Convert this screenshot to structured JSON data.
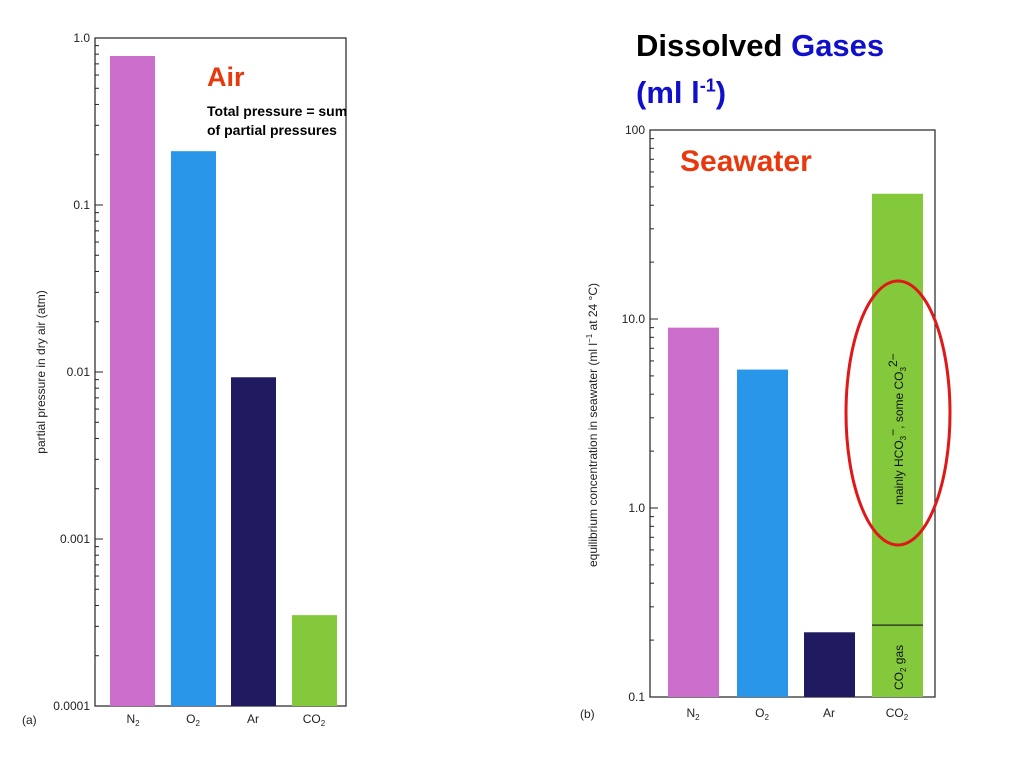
{
  "slide": {
    "title_part1": "Dissolved",
    "title_part2": "Gases",
    "title_unit_open": "(ml l",
    "title_unit_sup": "-1",
    "title_unit_close": ")",
    "air_label": "Air",
    "air_sub_line1": "Total pressure = sum",
    "air_sub_line2": "of partial pressures",
    "seawater_label": "Seawater",
    "colors": {
      "title_accent": "#1010cc",
      "label_accent": "#e8380d",
      "annotation_ellipse": "#e01818"
    }
  },
  "chart_data": [
    {
      "type": "bar",
      "panel": "(a)",
      "scale": "log",
      "categories": [
        "N2",
        "O2",
        "Ar",
        "CO2"
      ],
      "values": [
        0.78,
        0.21,
        0.0093,
        0.00035
      ],
      "colors": [
        "#cc6fcc",
        "#2a96ea",
        "#201a60",
        "#84c93c"
      ],
      "ylabel": "partial pressure in dry air (atm)",
      "ylim": [
        0.0001,
        1.0
      ],
      "yticks": [
        {
          "value": 1.0,
          "label": "1.0"
        },
        {
          "value": 0.1,
          "label": "0.1"
        },
        {
          "value": 0.01,
          "label": "0.01"
        },
        {
          "value": 0.001,
          "label": "0.001"
        },
        {
          "value": 0.0001,
          "label": "0.0001"
        }
      ]
    },
    {
      "type": "bar",
      "panel": "(b)",
      "scale": "log",
      "categories": [
        "N2",
        "O2",
        "Ar",
        "CO2"
      ],
      "values": [
        9.0,
        5.4,
        0.22,
        46
      ],
      "colors": [
        "#cc6fcc",
        "#2a96ea",
        "#201a60",
        "#84c93c"
      ],
      "ylabel": "equilibrium concentration in seawater (ml l",
      "ylabel_sup": "−1",
      "ylabel_end": " at 24 °C)",
      "ylim": [
        0.1,
        100
      ],
      "yticks": [
        {
          "value": 100,
          "label": "100"
        },
        {
          "value": 10,
          "label": "10.0"
        },
        {
          "value": 1,
          "label": "1.0"
        },
        {
          "value": 0.1,
          "label": "0.1"
        }
      ],
      "co2_split_value": 0.24,
      "co2_annotation_upper": "mainly HCO",
      "co2_annotation_upper_mid": ", some CO",
      "co2_annotation_lower": "CO",
      "co2_annotation_lower_end": " gas"
    }
  ]
}
